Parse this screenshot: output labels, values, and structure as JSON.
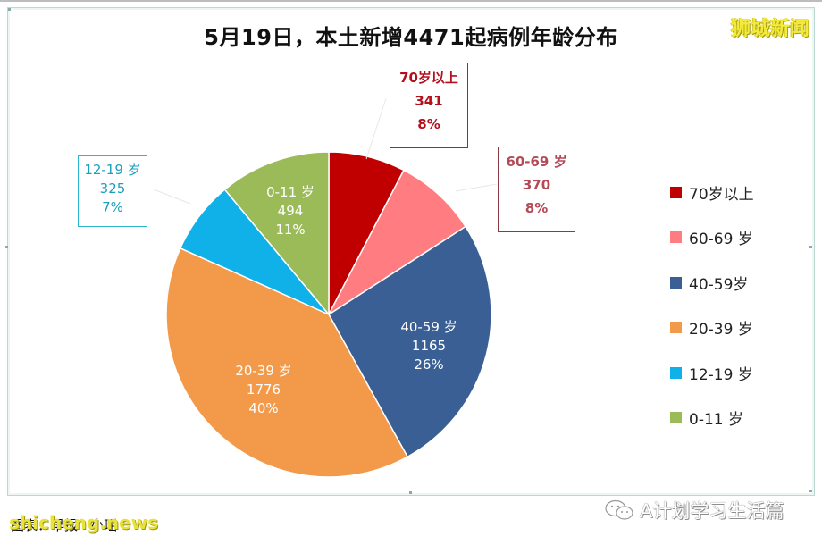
{
  "title": "5月19日，本土新增4471起病例年龄分布",
  "brand": "狮城新闻",
  "footer": {
    "source_label": "图表：早报  ·  小瑶",
    "watermark": "shicheng.news",
    "account": "A计划学习生活篇",
    "account_icon": "wechat-icon"
  },
  "colors": {
    "70plus": "#c00000",
    "60_69": "#ff7c80",
    "40_59": "#3a5f94",
    "20_39": "#f39a4a",
    "12_19": "#0fb1e8",
    "0_11": "#9bbb59"
  },
  "callouts": {
    "s70": {
      "label": "70岁以上",
      "value": "341",
      "pct": "8%"
    },
    "s60": {
      "label": "60-69 岁",
      "value": "370",
      "pct": "8%"
    },
    "s40": {
      "label": "40-59 岁",
      "value": "1165",
      "pct": "26%"
    },
    "s20": {
      "label": "20-39 岁",
      "value": "1776",
      "pct": "40%"
    },
    "s12": {
      "label": "12-19 岁",
      "value": "325",
      "pct": "7%"
    },
    "s0": {
      "label": "0-11 岁",
      "value": "494",
      "pct": "11%"
    }
  },
  "legend": [
    {
      "label": "70岁以上",
      "color": "#c00000"
    },
    {
      "label": "60-69 岁",
      "color": "#ff7c80"
    },
    {
      "label": "40-59岁",
      "color": "#3a5f94"
    },
    {
      "label": "20-39 岁",
      "color": "#f39a4a"
    },
    {
      "label": "12-19 岁",
      "color": "#0fb1e8"
    },
    {
      "label": "0-11 岁",
      "color": "#9bbb59"
    }
  ],
  "chart_data": {
    "type": "pie",
    "title": "5月19日，本土新增4471起病例年龄分布",
    "categories": [
      "70岁以上",
      "60-69 岁",
      "40-59 岁",
      "20-39 岁",
      "12-19 岁",
      "0-11 岁"
    ],
    "values": [
      341,
      370,
      1165,
      1776,
      325,
      494
    ],
    "percentages": [
      8,
      8,
      26,
      40,
      7,
      11
    ],
    "total": 4471,
    "start_angle": "12 o'clock, clockwise",
    "legend_position": "right",
    "data_labels": "category, value, percent"
  }
}
